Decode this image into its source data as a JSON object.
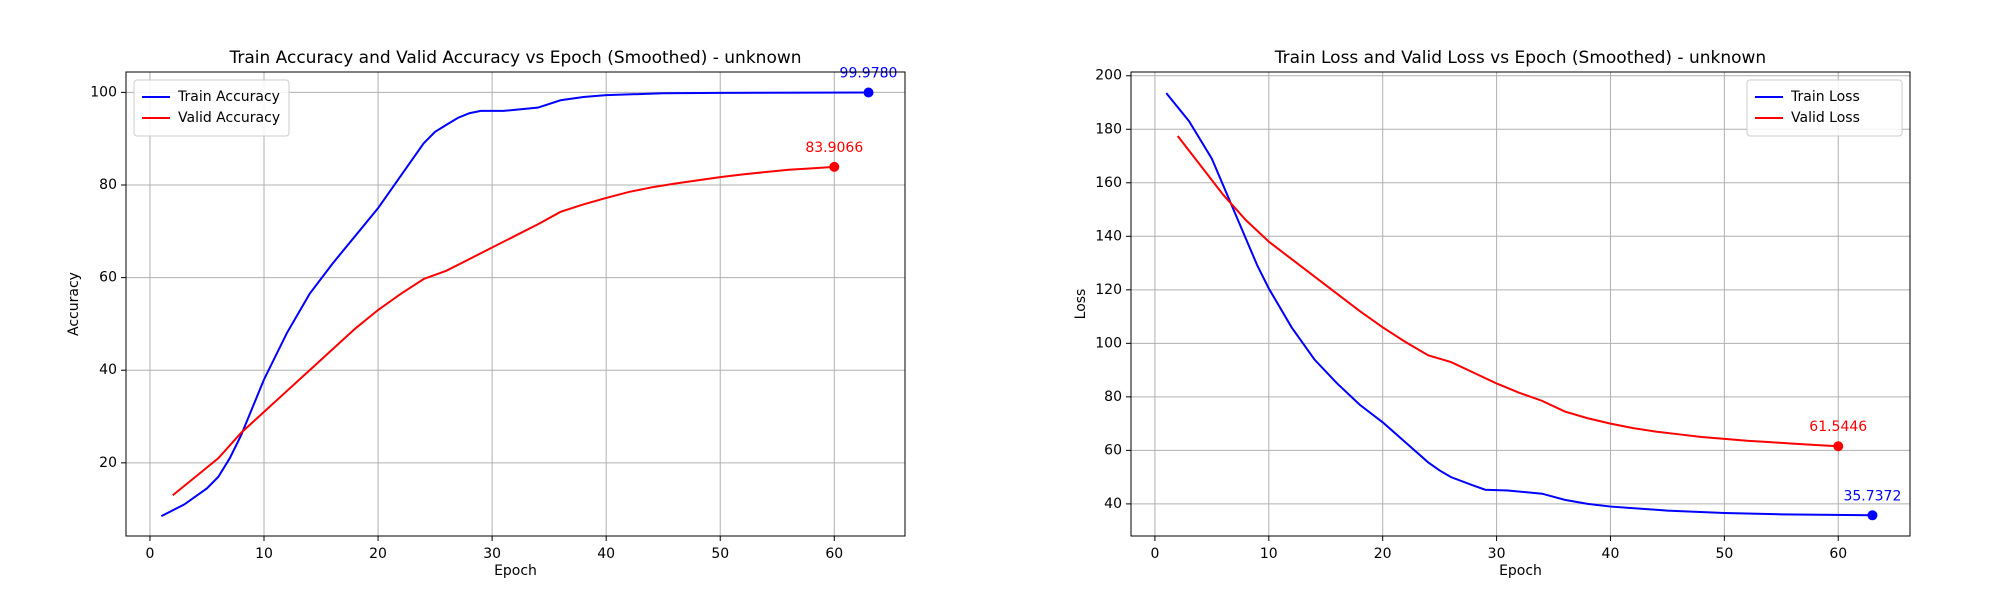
{
  "chart_data": [
    {
      "type": "line",
      "title": "Train Accuracy and Valid Accuracy vs Epoch (Smoothed) - unknown",
      "x_label": "Epoch",
      "y_label": "Accuracy",
      "grid": true,
      "legend": "upper left",
      "xlim": [
        -2.1,
        66.2
      ],
      "ylim": [
        4.2,
        104.4
      ],
      "xticks": [
        0,
        10,
        20,
        30,
        40,
        50,
        60
      ],
      "yticks": [
        20,
        40,
        60,
        80,
        100
      ],
      "series": [
        {
          "name": "Train Accuracy",
          "color": "#0000ff",
          "x": [
            1,
            3,
            5,
            6,
            7,
            8,
            9,
            10,
            12,
            14,
            16,
            18,
            20,
            22,
            24,
            25,
            26,
            27,
            28,
            29,
            31,
            34,
            36,
            38,
            40,
            45,
            50,
            63
          ],
          "values": [
            8.5,
            11,
            14.5,
            17,
            21,
            26,
            32,
            38,
            48,
            56.5,
            63,
            69,
            75,
            82,
            89,
            91.5,
            93,
            94.5,
            95.5,
            96,
            96,
            96.7,
            98.3,
            99,
            99.4,
            99.8,
            99.9,
            99.978
          ],
          "value_labels": [
            null,
            null,
            null,
            null,
            null,
            null,
            null,
            null,
            null,
            null,
            null,
            null,
            null,
            null,
            null,
            null,
            null,
            null,
            null,
            null,
            null,
            null,
            null,
            null,
            null,
            null,
            null,
            "99.9780"
          ]
        },
        {
          "name": "Valid Accuracy",
          "color": "#ff0000",
          "x": [
            2,
            4,
            6,
            8,
            10,
            12,
            14,
            16,
            18,
            20,
            22,
            24,
            26,
            28,
            30,
            32,
            34,
            36,
            38,
            40,
            42,
            44,
            46,
            48,
            50,
            52,
            54,
            56,
            58,
            60
          ],
          "values": [
            13,
            17,
            21,
            26.5,
            31,
            35.5,
            40,
            44.5,
            49,
            53,
            56.5,
            59.7,
            61.5,
            64,
            66.5,
            69,
            71.5,
            74.2,
            75.8,
            77.2,
            78.5,
            79.5,
            80.3,
            81,
            81.7,
            82.3,
            82.8,
            83.3,
            83.6,
            83.9066
          ],
          "value_labels": [
            null,
            null,
            null,
            null,
            null,
            null,
            null,
            null,
            null,
            null,
            null,
            null,
            null,
            null,
            null,
            null,
            null,
            null,
            null,
            null,
            null,
            null,
            null,
            null,
            null,
            null,
            null,
            null,
            null,
            "83.9066"
          ]
        }
      ]
    },
    {
      "type": "line",
      "title": "Train Loss and Valid Loss vs Epoch (Smoothed) - unknown",
      "x_label": "Epoch",
      "y_label": "Loss",
      "grid": true,
      "legend": "upper right",
      "xlim": [
        -2.1,
        66.3
      ],
      "ylim": [
        28.0,
        201.4
      ],
      "xticks": [
        0,
        10,
        20,
        30,
        40,
        50,
        60
      ],
      "yticks": [
        40,
        60,
        80,
        100,
        120,
        140,
        160,
        180,
        200
      ],
      "series": [
        {
          "name": "Train Loss",
          "color": "#0000ff",
          "x": [
            1,
            3,
            5,
            7,
            8,
            9,
            10,
            12,
            14,
            16,
            18,
            20,
            22,
            24,
            25,
            26,
            28,
            29,
            31,
            34,
            36,
            38,
            40,
            45,
            50,
            55,
            63
          ],
          "values": [
            193.5,
            183,
            169,
            149,
            139,
            129,
            120.5,
            106,
            94,
            85,
            77,
            70.5,
            63,
            55.5,
            52.5,
            50,
            46.8,
            45.3,
            45,
            43.8,
            41.5,
            40,
            39,
            37.5,
            36.6,
            36.1,
            35.7372
          ],
          "value_labels": [
            null,
            null,
            null,
            null,
            null,
            null,
            null,
            null,
            null,
            null,
            null,
            null,
            null,
            null,
            null,
            null,
            null,
            null,
            null,
            null,
            null,
            null,
            null,
            null,
            null,
            null,
            "35.7372"
          ]
        },
        {
          "name": "Valid Loss",
          "color": "#ff0000",
          "x": [
            2,
            4,
            6,
            8,
            10,
            12,
            14,
            16,
            18,
            20,
            22,
            24,
            26,
            28,
            30,
            32,
            34,
            36,
            38,
            40,
            42,
            44,
            46,
            48,
            50,
            52,
            54,
            56,
            58,
            60
          ],
          "values": [
            177.5,
            166.5,
            155.5,
            146,
            138,
            131.5,
            125,
            118.5,
            112,
            106,
            100.5,
            95.5,
            93,
            89,
            85,
            81.5,
            78.5,
            74.5,
            72,
            70,
            68.3,
            67,
            66,
            65,
            64.3,
            63.6,
            63.1,
            62.5,
            62,
            61.5446
          ],
          "value_labels": [
            null,
            null,
            null,
            null,
            null,
            null,
            null,
            null,
            null,
            null,
            null,
            null,
            null,
            null,
            null,
            null,
            null,
            null,
            null,
            null,
            null,
            null,
            null,
            null,
            null,
            null,
            null,
            null,
            null,
            "61.5446"
          ]
        }
      ]
    }
  ]
}
